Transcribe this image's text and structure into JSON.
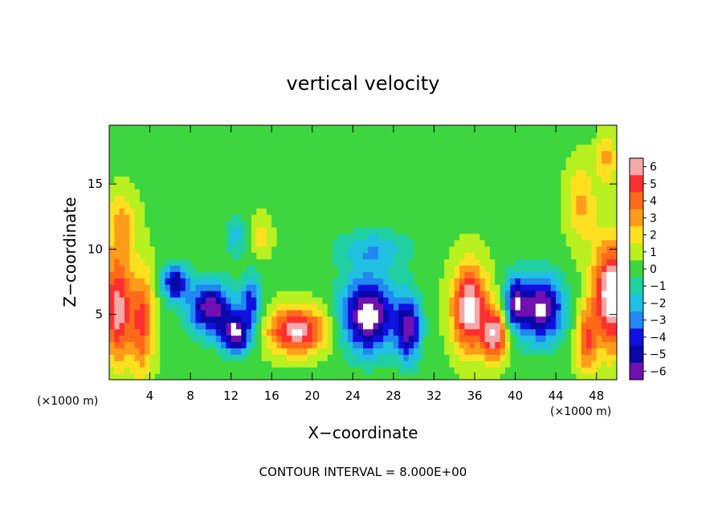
{
  "chart_data": {
    "type": "heatmap",
    "title": "vertical velocity",
    "xlabel": "X−coordinate",
    "ylabel": "Z−coordinate",
    "x_unit_left": "(×1000 m)",
    "x_unit_right": "(×1000 m)",
    "footer": "CONTOUR INTERVAL = 8.000E+00",
    "xlim": [
      0,
      50
    ],
    "ylim": [
      0,
      19.5
    ],
    "xticks": [
      4,
      8,
      12,
      16,
      20,
      24,
      28,
      32,
      36,
      40,
      44,
      48
    ],
    "xtick_labels": [
      "4",
      "8",
      "12",
      "16",
      "20",
      "24",
      "28",
      "32",
      "36",
      "40",
      "44",
      "48"
    ],
    "yticks": [
      5,
      10,
      15
    ],
    "ytick_labels": [
      "5",
      "10",
      "15"
    ],
    "colorbar": {
      "levels": [
        6,
        5,
        4,
        3,
        2,
        1,
        0,
        -1,
        -2,
        -3,
        -4,
        -5,
        -6
      ],
      "labels": [
        "6",
        "5",
        "4",
        "3",
        "2",
        "1",
        "0",
        "−1",
        "−2",
        "−3",
        "−4",
        "−5",
        "−6"
      ],
      "colors": [
        "#f4a8a8",
        "#ff3030",
        "#ff6a1a",
        "#ff9c1a",
        "#ffe020",
        "#b8f020",
        "#3ed63e",
        "#20d0a0",
        "#20c0e0",
        "#2088f0",
        "#1010e0",
        "#0808a8",
        "#7010b0"
      ]
    },
    "field": {
      "background_value": 0.2,
      "features": [
        {
          "x": 0.8,
          "z": 5.5,
          "w": 6.0,
          "sx": 1.3,
          "sz": 4.0
        },
        {
          "x": 3.2,
          "z": 4.5,
          "w": 4.5,
          "sx": 1.2,
          "sz": 4.0
        },
        {
          "x": 1.2,
          "z": 12.0,
          "w": 2.5,
          "sx": 1.5,
          "sz": 2.5
        },
        {
          "x": 6.5,
          "z": 7.5,
          "w": -5.5,
          "sx": 1.3,
          "sz": 1.4
        },
        {
          "x": 10.0,
          "z": 5.5,
          "w": -6.5,
          "sx": 2.2,
          "sz": 2.0
        },
        {
          "x": 12.5,
          "z": 3.5,
          "w": -6.5,
          "sx": 1.4,
          "sz": 1.5
        },
        {
          "x": 14.0,
          "z": 6.0,
          "w": -4.0,
          "sx": 1.0,
          "sz": 2.0
        },
        {
          "x": 18.5,
          "z": 3.8,
          "w": 6.5,
          "sx": 2.8,
          "sz": 1.7
        },
        {
          "x": 15.0,
          "z": 11.0,
          "w": 2.0,
          "sx": 1.0,
          "sz": 1.5
        },
        {
          "x": 12.5,
          "z": 11.0,
          "w": -2.0,
          "sx": 1.2,
          "sz": 1.5
        },
        {
          "x": 25.5,
          "z": 5.0,
          "w": -7.5,
          "sx": 2.6,
          "sz": 2.8
        },
        {
          "x": 29.5,
          "z": 4.0,
          "w": -6.0,
          "sx": 1.2,
          "sz": 2.5
        },
        {
          "x": 26.0,
          "z": 10.0,
          "w": -2.5,
          "sx": 3.5,
          "sz": 1.5
        },
        {
          "x": 35.5,
          "z": 5.5,
          "w": 7.0,
          "sx": 1.7,
          "sz": 3.2
        },
        {
          "x": 38.0,
          "z": 3.5,
          "w": 6.0,
          "sx": 1.2,
          "sz": 2.0
        },
        {
          "x": 42.5,
          "z": 5.5,
          "w": -7.0,
          "sx": 2.2,
          "sz": 2.5
        },
        {
          "x": 40.0,
          "z": 6.0,
          "w": -5.0,
          "sx": 1.0,
          "sz": 2.0
        },
        {
          "x": 49.5,
          "z": 6.5,
          "w": 7.5,
          "sx": 1.8,
          "sz": 4.0
        },
        {
          "x": 47.0,
          "z": 3.0,
          "w": 4.0,
          "sx": 1.0,
          "sz": 2.5
        },
        {
          "x": 46.5,
          "z": 13.5,
          "w": 2.5,
          "sx": 1.5,
          "sz": 3.0
        },
        {
          "x": 49.0,
          "z": 17.0,
          "w": 2.5,
          "sx": 1.0,
          "sz": 2.0
        }
      ]
    }
  }
}
